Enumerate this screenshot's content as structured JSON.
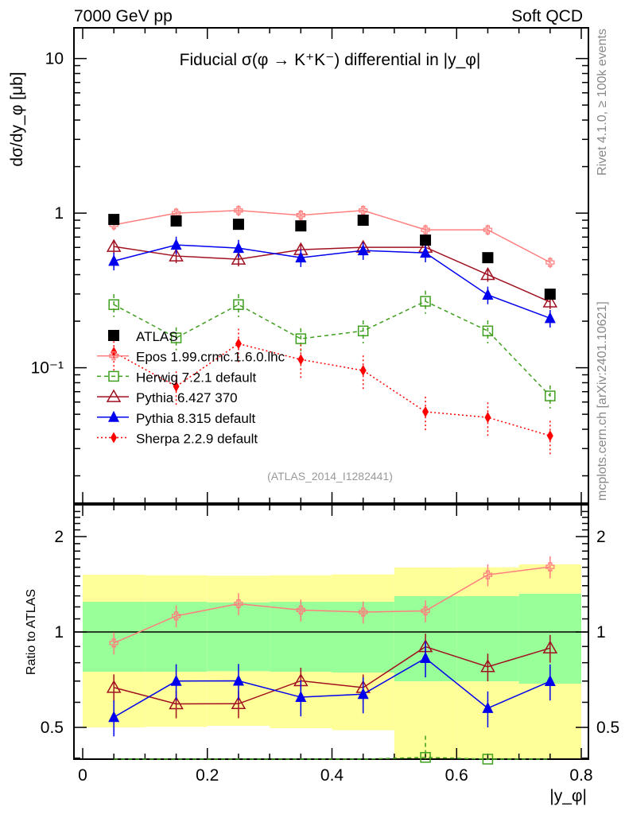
{
  "header": {
    "left": "7000 GeV pp",
    "right": "Soft QCD"
  },
  "side_text": {
    "rivet": "Rivet 4.1.0, ≥ 100k events",
    "mcplots": "mcplots.cern.ch [arXiv:2401.10621]"
  },
  "analysis_id": "(ATLAS_2014_I1282441)",
  "chart_data": {
    "type": "line",
    "title": "Fiducial σ(φ →  K⁺K⁻) differential in |y_φ|",
    "xlabel": "|y_φ|",
    "ylabel": "dσ/dy_φ [μb]",
    "ratio_ylabel": "Ratio to ATLAS",
    "xlim": [
      0,
      0.8
    ],
    "ylim": [
      0.0133,
      15.8
    ],
    "yscale": "log",
    "ratio_ylim": [
      0.397,
      2.52
    ],
    "x_ticks": [
      "0",
      "0.2",
      "0.4",
      "0.6",
      "0.8"
    ],
    "y_ticks": [
      "10",
      "1",
      "10⁻¹"
    ],
    "ratio_ticks": [
      "2",
      "1",
      "0.5"
    ],
    "legend_position": "lower-left",
    "x": [
      0.05,
      0.15,
      0.25,
      0.35,
      0.45,
      0.55,
      0.65,
      0.75
    ],
    "data": {
      "name": "ATLAS",
      "color": "#000000",
      "values": [
        0.91,
        0.89,
        0.847,
        0.827,
        0.9,
        0.669,
        0.515,
        0.299
      ]
    },
    "bands": {
      "inner_color": "#99ff99",
      "outer_color": "#ffff99",
      "inner_up": [
        1.245,
        1.245,
        1.24,
        1.245,
        1.245,
        1.297,
        1.297,
        1.32
      ],
      "inner_down": [
        0.749,
        0.749,
        0.752,
        0.749,
        0.745,
        0.699,
        0.699,
        0.687
      ],
      "outer_up": [
        1.516,
        1.51,
        1.505,
        1.51,
        1.52,
        1.597,
        1.6,
        1.634
      ],
      "outer_down": [
        0.5,
        0.502,
        0.506,
        0.497,
        0.49,
        0.38,
        0.38,
        0.38
      ]
    },
    "series": [
      {
        "name": "Epos 1.99.crmc.1.6.0.lhc",
        "color": "#ff7f7f",
        "marker": "open-cross",
        "dash": "",
        "values": [
          0.84,
          1.0,
          1.04,
          0.97,
          1.04,
          0.78,
          0.78,
          0.48
        ],
        "rel_err": 0.08
      },
      {
        "name": "Herwig 7.2.1 default",
        "color": "#3f9f1f",
        "marker": "open-square",
        "dash": "5,4",
        "values": [
          0.256,
          0.156,
          0.256,
          0.154,
          0.173,
          0.269,
          0.173,
          0.0657
        ],
        "rel_err": 0.17
      },
      {
        "name": "Pythia 6.427 370",
        "color": "#a01020",
        "marker": "open-triangle",
        "dash": "",
        "values": [
          0.608,
          0.528,
          0.503,
          0.58,
          0.601,
          0.601,
          0.4,
          0.266
        ],
        "rel_err": 0.1
      },
      {
        "name": "Pythia 8.315 default",
        "color": "#0000ee",
        "marker": "filled-triangle",
        "dash": "",
        "values": [
          0.49,
          0.623,
          0.594,
          0.515,
          0.573,
          0.553,
          0.296,
          0.209
        ],
        "rel_err": 0.13
      },
      {
        "name": "Sherpa 2.2.9 default",
        "color": "#ff0000",
        "marker": "filled-diamond",
        "dash": "2,3",
        "values": [
          0.126,
          0.0757,
          0.143,
          0.113,
          0.096,
          0.0519,
          0.0477,
          0.0363
        ],
        "rel_err": 0.25
      }
    ]
  }
}
